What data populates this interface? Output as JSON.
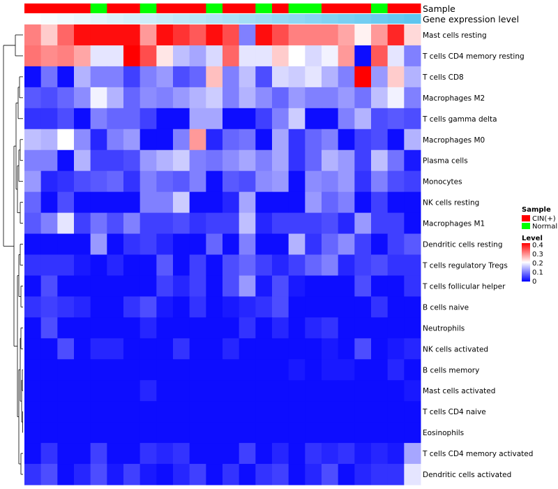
{
  "chart_data": {
    "type": "heatmap",
    "annotation_labels": [
      "Sample",
      "Gene expression level"
    ],
    "sample_groups": [
      "CIN(+)",
      "CIN(+)",
      "CIN(+)",
      "CIN(+)",
      "Normal",
      "CIN(+)",
      "CIN(+)",
      "Normal",
      "CIN(+)",
      "CIN(+)",
      "CIN(+)",
      "Normal",
      "CIN(+)",
      "CIN(+)",
      "Normal",
      "CIN(+)",
      "Normal",
      "Normal",
      "CIN(+)",
      "CIN(+)",
      "CIN(+)",
      "Normal",
      "CIN(+)",
      "CIN(+)"
    ],
    "expression_level": [
      0.02,
      0.04,
      0.06,
      0.08,
      0.1,
      0.12,
      0.14,
      0.16,
      0.18,
      0.2,
      0.22,
      0.24,
      0.26,
      0.28,
      0.3,
      0.32,
      0.34,
      0.36,
      0.38,
      0.4,
      0.42,
      0.44,
      0.46,
      0.48
    ],
    "rows": [
      "Mast cells resting",
      "T cells CD4 memory resting",
      "T cells CD8",
      "Macrophages M2",
      "T cells gamma delta",
      "Macrophages M0",
      "Plasma cells",
      "Monocytes",
      "NK cells resting",
      "Macrophages M1",
      "Dendritic cells resting",
      "T cells regulatory  Tregs",
      "T cells follicular helper",
      "B cells naive",
      "Neutrophils",
      "NK cells activated",
      "B cells memory",
      "Mast cells activated",
      "T cells CD4 naive",
      "Eosinophils",
      "T cells CD4 memory activated",
      "Dendritic cells activated"
    ],
    "values": [
      [
        0.3,
        0.24,
        0.32,
        0.39,
        0.39,
        0.39,
        0.39,
        0.28,
        0.39,
        0.36,
        0.33,
        0.39,
        0.34,
        0.1,
        0.39,
        0.34,
        0.3,
        0.3,
        0.3,
        0.27,
        0.21,
        0.28,
        0.37,
        0.23
      ],
      [
        0.31,
        0.29,
        0.3,
        0.27,
        0.18,
        0.18,
        0.4,
        0.34,
        0.22,
        0.15,
        0.13,
        0.17,
        0.32,
        0.18,
        0.18,
        0.24,
        0.2,
        0.17,
        0.19,
        0.28,
        0.01,
        0.33,
        0.18,
        0.1
      ],
      [
        0.01,
        0.09,
        0.01,
        0.14,
        0.1,
        0.1,
        0.05,
        0.1,
        0.12,
        0.06,
        0.08,
        0.25,
        0.1,
        0.15,
        0.06,
        0.17,
        0.16,
        0.18,
        0.14,
        0.1,
        0.4,
        0.12,
        0.24,
        0.14
      ],
      [
        0.07,
        0.06,
        0.08,
        0.11,
        0.19,
        0.14,
        0.08,
        0.11,
        0.1,
        0.12,
        0.14,
        0.16,
        0.1,
        0.14,
        0.11,
        0.08,
        0.12,
        0.1,
        0.1,
        0.12,
        0.09,
        0.15,
        0.19,
        0.1
      ],
      [
        0.04,
        0.04,
        0.06,
        0.01,
        0.1,
        0.08,
        0.08,
        0.05,
        0.01,
        0.01,
        0.13,
        0.13,
        0.01,
        0.01,
        0.05,
        0.1,
        0.16,
        0.01,
        0.01,
        0.1,
        0.14,
        0.06,
        0.07,
        0.06
      ],
      [
        0.15,
        0.14,
        0.2,
        0.11,
        0.03,
        0.1,
        0.12,
        0.01,
        0.01,
        0.1,
        0.28,
        0.03,
        0.08,
        0.09,
        0.01,
        0.13,
        0.04,
        0.08,
        0.1,
        0.01,
        0.05,
        0.06,
        0.01,
        0.14
      ],
      [
        0.1,
        0.1,
        0.01,
        0.14,
        0.05,
        0.05,
        0.06,
        0.12,
        0.14,
        0.16,
        0.1,
        0.09,
        0.11,
        0.13,
        0.1,
        0.13,
        0.04,
        0.08,
        0.14,
        0.12,
        0.05,
        0.15,
        0.09,
        0.02
      ],
      [
        0.12,
        0.03,
        0.04,
        0.06,
        0.07,
        0.08,
        0.04,
        0.1,
        0.08,
        0.07,
        0.1,
        0.01,
        0.07,
        0.06,
        0.11,
        0.12,
        0.01,
        0.11,
        0.1,
        0.12,
        0.04,
        0.1,
        0.06,
        0.05
      ],
      [
        0.08,
        0.01,
        0.06,
        0.01,
        0.01,
        0.01,
        0.01,
        0.1,
        0.1,
        0.16,
        0.01,
        0.01,
        0.03,
        0.13,
        0.01,
        0.01,
        0.01,
        0.12,
        0.08,
        0.1,
        0.01,
        0.05,
        0.01,
        0.01
      ],
      [
        0.07,
        0.1,
        0.18,
        0.05,
        0.09,
        0.06,
        0.1,
        0.05,
        0.05,
        0.06,
        0.04,
        0.05,
        0.05,
        0.15,
        0.03,
        0.05,
        0.05,
        0.05,
        0.06,
        0.03,
        0.12,
        0.05,
        0.05,
        0.01
      ],
      [
        0.01,
        0.01,
        0.01,
        0.01,
        0.12,
        0.01,
        0.04,
        0.05,
        0.03,
        0.01,
        0.01,
        0.08,
        0.01,
        0.1,
        0.01,
        0.01,
        0.14,
        0.04,
        0.08,
        0.11,
        0.05,
        0.01,
        0.05,
        0.07
      ],
      [
        0.04,
        0.04,
        0.04,
        0.02,
        0.01,
        0.03,
        0.01,
        0.01,
        0.07,
        0.01,
        0.05,
        0.01,
        0.06,
        0.08,
        0.05,
        0.03,
        0.05,
        0.08,
        0.1,
        0.03,
        0.05,
        0.06,
        0.04,
        0.04
      ],
      [
        0.01,
        0.06,
        0.01,
        0.01,
        0.01,
        0.01,
        0.01,
        0.01,
        0.05,
        0.03,
        0.05,
        0.01,
        0.06,
        0.12,
        0.02,
        0.06,
        0.02,
        0.01,
        0.01,
        0.01,
        0.06,
        0.01,
        0.01,
        0.04
      ],
      [
        0.04,
        0.05,
        0.04,
        0.03,
        0.01,
        0.01,
        0.04,
        0.06,
        0.02,
        0.01,
        0.04,
        0.01,
        0.02,
        0.03,
        0.04,
        0.06,
        0.01,
        0.01,
        0.01,
        0.01,
        0.01,
        0.04,
        0.01,
        0.01
      ],
      [
        0.01,
        0.06,
        0.01,
        0.01,
        0.01,
        0.01,
        0.01,
        0.03,
        0.01,
        0.01,
        0.01,
        0.01,
        0.01,
        0.04,
        0.01,
        0.03,
        0.01,
        0.03,
        0.04,
        0.01,
        0.01,
        0.01,
        0.01,
        0.01
      ],
      [
        0.01,
        0.01,
        0.06,
        0.01,
        0.03,
        0.03,
        0.01,
        0.01,
        0.01,
        0.04,
        0.01,
        0.01,
        0.03,
        0.01,
        0.01,
        0.01,
        0.01,
        0.01,
        0.02,
        0.01,
        0.06,
        0.01,
        0.02,
        0.03
      ],
      [
        0.01,
        0.01,
        0.01,
        0.01,
        0.01,
        0.01,
        0.01,
        0.01,
        0.01,
        0.01,
        0.01,
        0.01,
        0.01,
        0.01,
        0.01,
        0.01,
        0.02,
        0.01,
        0.02,
        0.02,
        0.01,
        0.01,
        0.03,
        0.01
      ],
      [
        0.01,
        0.01,
        0.01,
        0.01,
        0.01,
        0.01,
        0.01,
        0.03,
        0.01,
        0.01,
        0.01,
        0.01,
        0.01,
        0.01,
        0.01,
        0.01,
        0.01,
        0.01,
        0.01,
        0.01,
        0.01,
        0.01,
        0.01,
        0.02
      ],
      [
        0.01,
        0.01,
        0.01,
        0.01,
        0.01,
        0.01,
        0.01,
        0.01,
        0.01,
        0.01,
        0.01,
        0.01,
        0.01,
        0.01,
        0.01,
        0.01,
        0.01,
        0.01,
        0.01,
        0.01,
        0.01,
        0.01,
        0.01,
        0.01
      ],
      [
        0.01,
        0.01,
        0.01,
        0.01,
        0.01,
        0.01,
        0.01,
        0.01,
        0.01,
        0.01,
        0.01,
        0.01,
        0.01,
        0.01,
        0.01,
        0.01,
        0.01,
        0.01,
        0.01,
        0.01,
        0.01,
        0.01,
        0.01,
        0.01
      ],
      [
        0.01,
        0.04,
        0.01,
        0.01,
        0.05,
        0.01,
        0.01,
        0.04,
        0.03,
        0.04,
        0.01,
        0.01,
        0.01,
        0.05,
        0.01,
        0.03,
        0.01,
        0.04,
        0.03,
        0.04,
        0.02,
        0.03,
        0.02,
        0.13
      ],
      [
        0.04,
        0.06,
        0.01,
        0.03,
        0.06,
        0.02,
        0.05,
        0.02,
        0.01,
        0.03,
        0.05,
        0.01,
        0.04,
        0.01,
        0.04,
        0.05,
        0.01,
        0.03,
        0.06,
        0.01,
        0.03,
        0.04,
        0.04,
        0.18
      ]
    ],
    "legend": {
      "sample_title": "Sample",
      "sample_items": [
        {
          "label": "CIN(+)",
          "color": "#ff0000"
        },
        {
          "label": "Normal",
          "color": "#00ff00"
        }
      ],
      "level_title": "Level",
      "level_ticks": [
        "0.4",
        "0.3",
        "0.2",
        "0.1",
        "0"
      ],
      "level_range": [
        0,
        0.4
      ]
    },
    "colors": {
      "low": "#0000ff",
      "mid": "#ffffff",
      "high": "#ff0000",
      "annotation_low": "#ffffff",
      "annotation_high": "#5ec5ef"
    }
  }
}
